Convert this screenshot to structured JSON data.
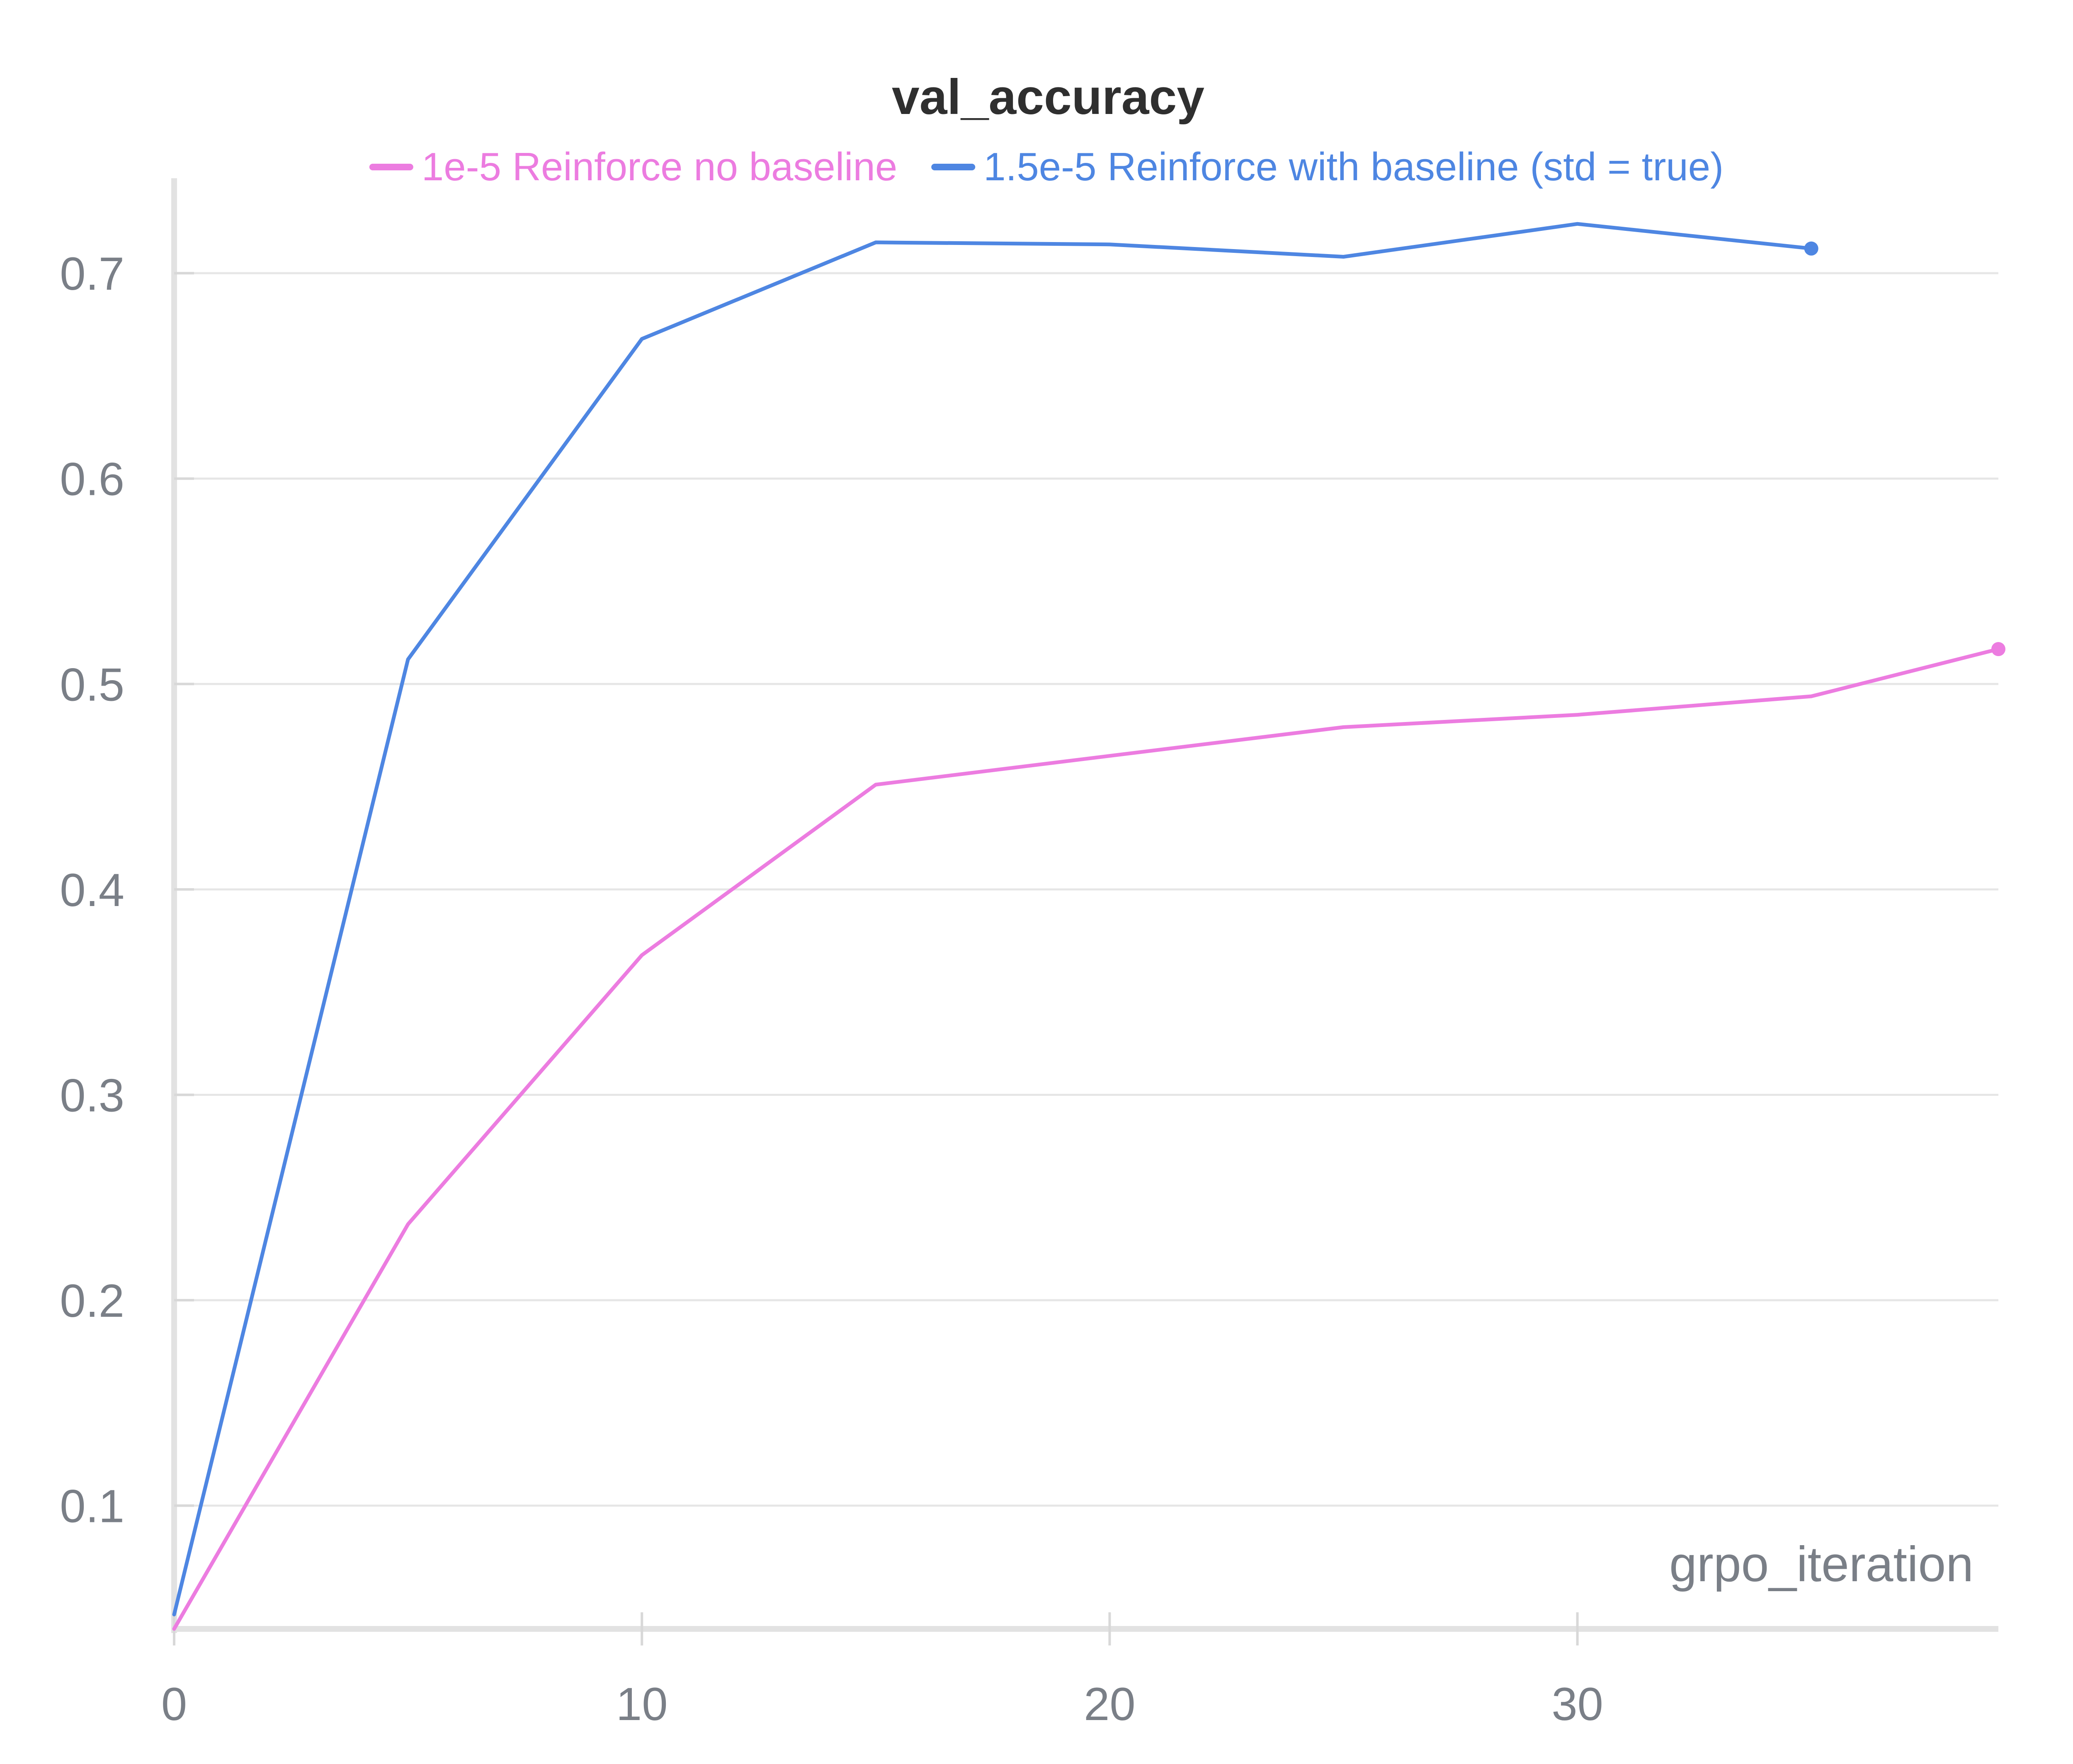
{
  "chart_data": {
    "type": "line",
    "title": "val_accuracy",
    "xlabel": "grpo_iteration",
    "ylabel": "",
    "xlim": [
      0,
      39
    ],
    "ylim": [
      0.04,
      0.72
    ],
    "x_ticks": [
      0,
      10,
      20,
      30
    ],
    "y_ticks": [
      0.1,
      0.2,
      0.3,
      0.4,
      0.5,
      0.6,
      0.7
    ],
    "grid": "horizontal",
    "legend_position": "top",
    "series": [
      {
        "name": "1e-5 Reinforce no baseline",
        "color": "#ec7ce0",
        "x": [
          0,
          5,
          10,
          15,
          20,
          25,
          30,
          35,
          39
        ],
        "values": [
          0.04,
          0.237,
          0.368,
          0.451,
          0.465,
          0.479,
          0.485,
          0.494,
          0.517
        ]
      },
      {
        "name": "1.5e-5 Reinforce with baseline (std = true)",
        "color": "#4e86e2",
        "x": [
          0,
          5,
          10,
          15,
          20,
          25,
          30,
          35
        ],
        "values": [
          0.047,
          0.512,
          0.668,
          0.715,
          0.714,
          0.708,
          0.724,
          0.712
        ]
      }
    ]
  }
}
